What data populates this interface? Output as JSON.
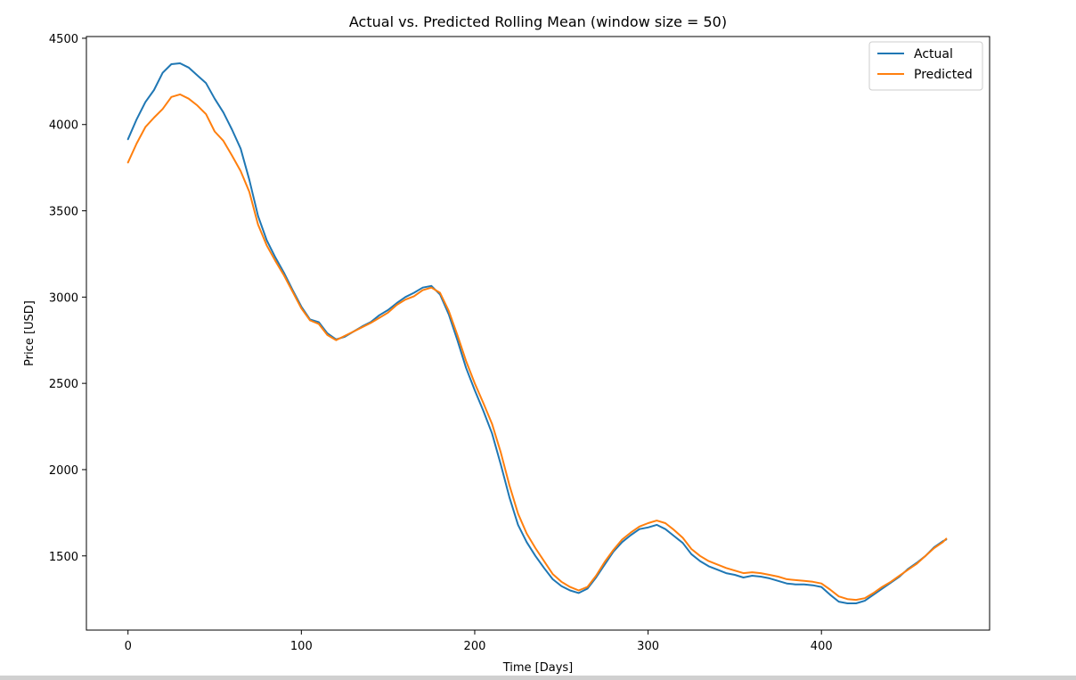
{
  "chart_data": {
    "type": "line",
    "title": "Actual vs. Predicted Rolling Mean (window size = 50)",
    "xlabel": "Time [Days]",
    "ylabel": "Price [USD]",
    "xlim": [
      -24,
      497
    ],
    "ylim": [
      1070,
      4510
    ],
    "xticks": [
      0,
      100,
      200,
      300,
      400
    ],
    "yticks": [
      1500,
      2000,
      2500,
      3000,
      3500,
      4000,
      4500
    ],
    "grid": false,
    "legend": "top-right",
    "series": [
      {
        "name": "Actual",
        "color": "#1f77b4",
        "points": [
          [
            0,
            3915
          ],
          [
            5,
            4030
          ],
          [
            10,
            4130
          ],
          [
            15,
            4200
          ],
          [
            20,
            4300
          ],
          [
            25,
            4350
          ],
          [
            30,
            4355
          ],
          [
            35,
            4330
          ],
          [
            40,
            4285
          ],
          [
            45,
            4240
          ],
          [
            50,
            4150
          ],
          [
            55,
            4070
          ],
          [
            60,
            3970
          ],
          [
            65,
            3860
          ],
          [
            70,
            3680
          ],
          [
            75,
            3470
          ],
          [
            80,
            3330
          ],
          [
            85,
            3230
          ],
          [
            90,
            3140
          ],
          [
            95,
            3040
          ],
          [
            100,
            2945
          ],
          [
            105,
            2870
          ],
          [
            110,
            2855
          ],
          [
            115,
            2790
          ],
          [
            120,
            2755
          ],
          [
            125,
            2770
          ],
          [
            130,
            2800
          ],
          [
            135,
            2830
          ],
          [
            140,
            2855
          ],
          [
            145,
            2895
          ],
          [
            150,
            2925
          ],
          [
            155,
            2965
          ],
          [
            160,
            3000
          ],
          [
            165,
            3025
          ],
          [
            170,
            3055
          ],
          [
            175,
            3065
          ],
          [
            180,
            3015
          ],
          [
            185,
            2900
          ],
          [
            190,
            2750
          ],
          [
            195,
            2590
          ],
          [
            200,
            2460
          ],
          [
            205,
            2340
          ],
          [
            210,
            2210
          ],
          [
            215,
            2030
          ],
          [
            220,
            1840
          ],
          [
            225,
            1680
          ],
          [
            230,
            1580
          ],
          [
            235,
            1500
          ],
          [
            240,
            1430
          ],
          [
            245,
            1365
          ],
          [
            250,
            1325
          ],
          [
            255,
            1300
          ],
          [
            260,
            1285
          ],
          [
            265,
            1310
          ],
          [
            270,
            1375
          ],
          [
            275,
            1450
          ],
          [
            280,
            1525
          ],
          [
            285,
            1580
          ],
          [
            290,
            1620
          ],
          [
            295,
            1655
          ],
          [
            300,
            1665
          ],
          [
            305,
            1680
          ],
          [
            310,
            1655
          ],
          [
            315,
            1615
          ],
          [
            320,
            1575
          ],
          [
            325,
            1510
          ],
          [
            330,
            1470
          ],
          [
            335,
            1440
          ],
          [
            340,
            1420
          ],
          [
            345,
            1400
          ],
          [
            350,
            1390
          ],
          [
            355,
            1375
          ],
          [
            360,
            1385
          ],
          [
            365,
            1380
          ],
          [
            370,
            1370
          ],
          [
            375,
            1355
          ],
          [
            380,
            1340
          ],
          [
            385,
            1335
          ],
          [
            390,
            1335
          ],
          [
            395,
            1330
          ],
          [
            400,
            1320
          ],
          [
            405,
            1275
          ],
          [
            410,
            1235
          ],
          [
            415,
            1225
          ],
          [
            420,
            1225
          ],
          [
            425,
            1240
          ],
          [
            430,
            1275
          ],
          [
            435,
            1310
          ],
          [
            440,
            1345
          ],
          [
            445,
            1380
          ],
          [
            450,
            1425
          ],
          [
            455,
            1460
          ],
          [
            460,
            1500
          ],
          [
            465,
            1550
          ],
          [
            470,
            1585
          ],
          [
            472,
            1595
          ]
        ]
      },
      {
        "name": "Predicted",
        "color": "#ff7f0e",
        "points": [
          [
            0,
            3780
          ],
          [
            5,
            3890
          ],
          [
            10,
            3985
          ],
          [
            15,
            4040
          ],
          [
            20,
            4090
          ],
          [
            25,
            4160
          ],
          [
            30,
            4175
          ],
          [
            35,
            4150
          ],
          [
            40,
            4110
          ],
          [
            45,
            4060
          ],
          [
            50,
            3960
          ],
          [
            55,
            3905
          ],
          [
            60,
            3820
          ],
          [
            65,
            3730
          ],
          [
            70,
            3610
          ],
          [
            75,
            3420
          ],
          [
            80,
            3300
          ],
          [
            85,
            3210
          ],
          [
            90,
            3125
          ],
          [
            95,
            3030
          ],
          [
            100,
            2935
          ],
          [
            105,
            2865
          ],
          [
            110,
            2845
          ],
          [
            115,
            2780
          ],
          [
            120,
            2750
          ],
          [
            125,
            2775
          ],
          [
            130,
            2800
          ],
          [
            135,
            2825
          ],
          [
            140,
            2850
          ],
          [
            145,
            2880
          ],
          [
            150,
            2910
          ],
          [
            155,
            2955
          ],
          [
            160,
            2985
          ],
          [
            165,
            3005
          ],
          [
            170,
            3040
          ],
          [
            175,
            3055
          ],
          [
            180,
            3025
          ],
          [
            185,
            2920
          ],
          [
            190,
            2780
          ],
          [
            195,
            2630
          ],
          [
            200,
            2500
          ],
          [
            205,
            2385
          ],
          [
            210,
            2265
          ],
          [
            215,
            2100
          ],
          [
            220,
            1910
          ],
          [
            225,
            1745
          ],
          [
            230,
            1630
          ],
          [
            235,
            1545
          ],
          [
            240,
            1470
          ],
          [
            245,
            1395
          ],
          [
            250,
            1350
          ],
          [
            255,
            1320
          ],
          [
            260,
            1300
          ],
          [
            265,
            1320
          ],
          [
            270,
            1385
          ],
          [
            275,
            1465
          ],
          [
            280,
            1535
          ],
          [
            285,
            1595
          ],
          [
            290,
            1635
          ],
          [
            295,
            1670
          ],
          [
            300,
            1690
          ],
          [
            305,
            1705
          ],
          [
            310,
            1690
          ],
          [
            315,
            1650
          ],
          [
            320,
            1605
          ],
          [
            325,
            1540
          ],
          [
            330,
            1500
          ],
          [
            335,
            1470
          ],
          [
            340,
            1450
          ],
          [
            345,
            1430
          ],
          [
            350,
            1415
          ],
          [
            355,
            1400
          ],
          [
            360,
            1405
          ],
          [
            365,
            1400
          ],
          [
            370,
            1390
          ],
          [
            375,
            1380
          ],
          [
            380,
            1365
          ],
          [
            385,
            1360
          ],
          [
            390,
            1355
          ],
          [
            395,
            1350
          ],
          [
            400,
            1340
          ],
          [
            405,
            1305
          ],
          [
            410,
            1265
          ],
          [
            415,
            1250
          ],
          [
            420,
            1245
          ],
          [
            425,
            1255
          ],
          [
            430,
            1285
          ],
          [
            435,
            1320
          ],
          [
            440,
            1350
          ],
          [
            445,
            1385
          ],
          [
            450,
            1420
          ],
          [
            455,
            1455
          ],
          [
            460,
            1500
          ],
          [
            465,
            1545
          ],
          [
            470,
            1580
          ],
          [
            472,
            1600
          ]
        ]
      }
    ]
  }
}
